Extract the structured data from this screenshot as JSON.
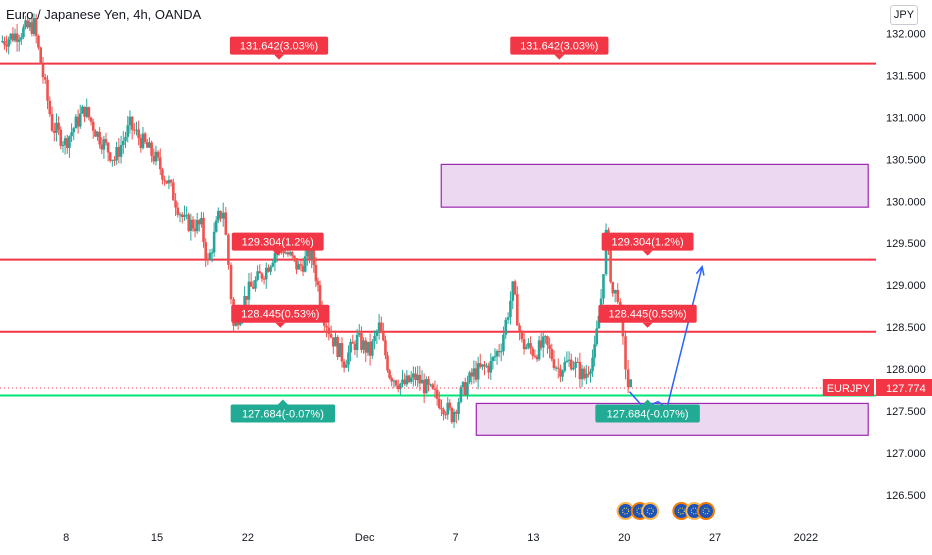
{
  "header": {
    "symbol_title": "Euro / Japanese Yen, 4h, OANDA",
    "currency": "JPY"
  },
  "chart_data": {
    "type": "candlestick",
    "title": "Euro / Japanese Yen, 4h, OANDA",
    "ylim": [
      126.2,
      132.4
    ],
    "y_ticks": [
      "132.000",
      "131.500",
      "131.000",
      "130.500",
      "130.000",
      "129.500",
      "129.000",
      "128.500",
      "128.000",
      "127.500",
      "127.000",
      "126.500"
    ],
    "x_ticks": [
      {
        "label": "8",
        "day": 8
      },
      {
        "label": "15",
        "day": 15
      },
      {
        "label": "22",
        "day": 22
      },
      {
        "label": "Dec",
        "day": 31
      },
      {
        "label": "7",
        "day": 38
      },
      {
        "label": "13",
        "day": 44
      },
      {
        "label": "20",
        "day": 51
      },
      {
        "label": "27",
        "day": 58
      },
      {
        "label": "2022",
        "day": 65
      }
    ],
    "x_domain_days": [
      2.9,
      70.4
    ],
    "last_price": {
      "symbol": "EURJPY",
      "value": "127.774",
      "price": 127.774
    },
    "horizontal_levels": [
      {
        "price": 131.642,
        "color": "#f23645",
        "labels": [
          "131.642(3.03%)",
          "131.642(3.03%)"
        ],
        "label_days": [
          24.4,
          46.0
        ],
        "label_side": "above"
      },
      {
        "price": 129.304,
        "color": "#f23645",
        "labels": [
          "129.304(1.2%)",
          "129.304(1.2%)"
        ],
        "label_days": [
          24.3,
          52.8
        ],
        "label_side": "above"
      },
      {
        "price": 128.445,
        "color": "#f23645",
        "labels": [
          "128.445(0.53%)",
          "128.445(0.53%)"
        ],
        "label_days": [
          24.5,
          52.8
        ],
        "label_side": "above"
      },
      {
        "price": 127.684,
        "color": "#22ab94",
        "line_color": "#00e676",
        "labels": [
          "127.684(-0.07%)",
          "127.684(-0.07%)"
        ],
        "label_days": [
          24.7,
          52.8
        ],
        "label_side": "below"
      }
    ],
    "zones": [
      {
        "day_from": 36.9,
        "day_to": 69.8,
        "price_top": 130.44,
        "price_bottom": 129.93,
        "color": "#e1bee7"
      },
      {
        "day_from": 39.6,
        "day_to": 69.8,
        "price_top": 127.59,
        "price_bottom": 127.21,
        "color": "#e1bee7"
      }
    ],
    "projection_path": [
      [
        51.4,
        127.73
      ],
      [
        52.5,
        127.54
      ],
      [
        53.6,
        127.61
      ],
      [
        54.3,
        127.54
      ],
      [
        57.0,
        129.22
      ]
    ],
    "event_icon_days": [
      51.1,
      52.2,
      53.0,
      55.4,
      56.4,
      57.3
    ],
    "anchors": [
      [
        3.0,
        131.9
      ],
      [
        5.6,
        132.1
      ],
      [
        7.0,
        130.9
      ],
      [
        8.0,
        130.7
      ],
      [
        9.5,
        131.1
      ],
      [
        10.5,
        130.8
      ],
      [
        11.8,
        130.5
      ],
      [
        13.0,
        130.9
      ],
      [
        15.0,
        130.5
      ],
      [
        16.0,
        130.2
      ],
      [
        17.2,
        129.75
      ],
      [
        18.5,
        129.7
      ],
      [
        19.0,
        129.25
      ],
      [
        19.8,
        129.8
      ],
      [
        20.2,
        129.9
      ],
      [
        20.6,
        129.25
      ],
      [
        21.0,
        128.5
      ],
      [
        22.0,
        128.9
      ],
      [
        23.5,
        129.2
      ],
      [
        24.5,
        129.5
      ],
      [
        26.0,
        129.2
      ],
      [
        27.0,
        129.4
      ],
      [
        27.8,
        128.7
      ],
      [
        28.5,
        128.4
      ],
      [
        29.5,
        128.1
      ],
      [
        30.5,
        128.35
      ],
      [
        31.5,
        128.2
      ],
      [
        32.2,
        128.5
      ],
      [
        33.0,
        127.95
      ],
      [
        34.0,
        127.8
      ],
      [
        35.0,
        127.9
      ],
      [
        36.0,
        127.75
      ],
      [
        37.0,
        127.6
      ],
      [
        37.8,
        127.45
      ],
      [
        38.5,
        127.7
      ],
      [
        39.5,
        127.95
      ],
      [
        40.8,
        128.05
      ],
      [
        41.6,
        128.3
      ],
      [
        42.5,
        128.95
      ],
      [
        43.2,
        128.3
      ],
      [
        44.2,
        128.2
      ],
      [
        45.0,
        128.3
      ],
      [
        46.0,
        128.0
      ],
      [
        47.0,
        128.1
      ],
      [
        48.0,
        127.9
      ],
      [
        48.8,
        128.2
      ],
      [
        49.3,
        128.85
      ],
      [
        49.7,
        129.6
      ],
      [
        50.2,
        128.9
      ],
      [
        50.6,
        128.9
      ],
      [
        51.0,
        128.3
      ],
      [
        51.4,
        127.8
      ],
      [
        51.6,
        127.8
      ]
    ]
  }
}
